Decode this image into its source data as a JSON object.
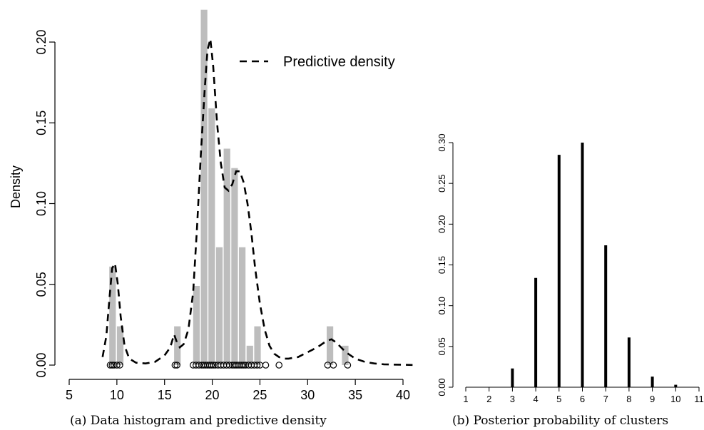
{
  "chart_data": [
    {
      "type": "bar",
      "panel": "a",
      "caption": "(a) Data histogram and predictive density",
      "title": "",
      "xlabel": "",
      "ylabel": "Density",
      "xlim": [
        5,
        41
      ],
      "ylim": [
        0,
        0.22
      ],
      "x_ticks": [
        5,
        10,
        15,
        20,
        25,
        30,
        35,
        40
      ],
      "y_ticks": [
        "0.00",
        "0.05",
        "0.10",
        "0.15",
        "0.20"
      ],
      "grid": false,
      "legend_position": "top-right",
      "bin_width": 0.8,
      "bars": [
        {
          "left": 9.2,
          "value": 0.061
        },
        {
          "left": 10.0,
          "value": 0.024
        },
        {
          "left": 16.0,
          "value": 0.024
        },
        {
          "left": 18.0,
          "value": 0.049
        },
        {
          "left": 18.8,
          "value": 0.22
        },
        {
          "left": 19.6,
          "value": 0.159
        },
        {
          "left": 20.4,
          "value": 0.073
        },
        {
          "left": 21.2,
          "value": 0.134
        },
        {
          "left": 22.0,
          "value": 0.122
        },
        {
          "left": 22.8,
          "value": 0.073
        },
        {
          "left": 23.6,
          "value": 0.012
        },
        {
          "left": 24.4,
          "value": 0.024
        },
        {
          "left": 32.0,
          "value": 0.024
        },
        {
          "left": 33.6,
          "value": 0.012
        }
      ],
      "series": [
        {
          "name": "Predictive density",
          "style": "dashed",
          "x": [
            8.5,
            8.9,
            9.2,
            9.5,
            9.8,
            10.1,
            10.4,
            10.8,
            11.3,
            12,
            13,
            14,
            15,
            15.6,
            16,
            16.3,
            16.6,
            17.0,
            17.5,
            18.0,
            18.4,
            18.8,
            19.2,
            19.5,
            19.8,
            20.1,
            20.5,
            20.9,
            21.3,
            21.7,
            22.1,
            22.5,
            22.9,
            23.3,
            23.7,
            24.1,
            24.5,
            25.0,
            25.5,
            26.0,
            26.5,
            27.0,
            27.5,
            28,
            29,
            30,
            31,
            32,
            32.5,
            33,
            33.5,
            34,
            34.5,
            35,
            36,
            37,
            38,
            39,
            40,
            41
          ],
          "y": [
            0.005,
            0.018,
            0.04,
            0.06,
            0.063,
            0.05,
            0.03,
            0.012,
            0.004,
            0.0015,
            0.001,
            0.002,
            0.006,
            0.011,
            0.019,
            0.014,
            0.011,
            0.013,
            0.022,
            0.045,
            0.085,
            0.13,
            0.17,
            0.195,
            0.202,
            0.185,
            0.15,
            0.125,
            0.11,
            0.108,
            0.112,
            0.12,
            0.12,
            0.113,
            0.1,
            0.082,
            0.06,
            0.038,
            0.022,
            0.012,
            0.007,
            0.005,
            0.004,
            0.004,
            0.005,
            0.008,
            0.011,
            0.015,
            0.016,
            0.014,
            0.011,
            0.008,
            0.006,
            0.004,
            0.002,
            0.001,
            0.0005,
            0.0003,
            0.0002,
            0.0001
          ]
        }
      ],
      "rug": [
        9.3,
        9.5,
        9.7,
        10.0,
        10.3,
        16.1,
        16.3,
        18.0,
        18.3,
        18.6,
        18.9,
        19.1,
        19.3,
        19.5,
        19.7,
        19.9,
        20.1,
        20.3,
        20.6,
        20.9,
        21.2,
        21.5,
        21.8,
        22.1,
        22.3,
        22.5,
        22.7,
        22.9,
        23.1,
        23.3,
        23.5,
        23.8,
        24.1,
        24.4,
        24.7,
        25.0,
        25.6,
        27.0,
        32.1,
        32.7,
        34.2
      ]
    },
    {
      "type": "bar",
      "panel": "b",
      "caption": "(b) Posterior probability of clusters",
      "title": "",
      "xlabel": "",
      "ylabel": "",
      "categories": [
        "1",
        "2",
        "3",
        "4",
        "5",
        "6",
        "7",
        "8",
        "9",
        "10",
        "11"
      ],
      "values": [
        0.0,
        0.0,
        0.023,
        0.134,
        0.285,
        0.3,
        0.174,
        0.061,
        0.013,
        0.003,
        0.0
      ],
      "xlim": [
        1,
        11
      ],
      "ylim": [
        0,
        0.3
      ],
      "y_ticks": [
        "0.00",
        "0.05",
        "0.10",
        "0.15",
        "0.20",
        "0.25",
        "0.30"
      ],
      "grid": false
    }
  ]
}
